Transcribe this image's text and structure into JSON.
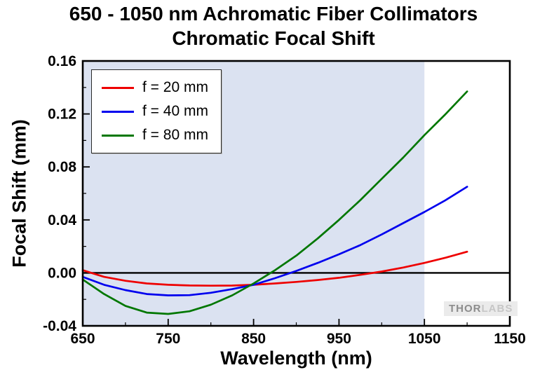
{
  "page": {
    "title_line1": "650 - 1050 nm Achromatic Fiber Collimators",
    "title_line2": "Chromatic Focal Shift"
  },
  "watermark": {
    "part1": "THOR",
    "part2": "LABS"
  },
  "chart_data": {
    "type": "line",
    "title": "650 - 1050 nm Achromatic Fiber Collimators Chromatic Focal Shift",
    "xlabel": "Wavelength (nm)",
    "ylabel": "Focal Shift (mm)",
    "xlim": [
      650,
      1150
    ],
    "ylim": [
      -0.04,
      0.16
    ],
    "x_major_ticks": [
      650,
      750,
      850,
      950,
      1050,
      1150
    ],
    "x_minor_ticks": [
      700,
      800,
      900,
      1000,
      1100
    ],
    "y_major_ticks": [
      -0.04,
      0.0,
      0.04,
      0.08,
      0.12,
      0.16
    ],
    "y_tick_labels": [
      "-0.04",
      "0.00",
      "0.04",
      "0.08",
      "0.12",
      "0.16"
    ],
    "y_minor_ticks": [
      -0.02,
      0.02,
      0.06,
      0.1,
      0.14
    ],
    "grid": "off",
    "legend_position": "top-left",
    "shaded_region": {
      "x_start": 650,
      "x_end": 1050,
      "color": "#dbe2f1"
    },
    "zero_line_y": 0,
    "x": [
      650,
      675,
      700,
      725,
      750,
      775,
      800,
      825,
      850,
      875,
      900,
      925,
      950,
      975,
      1000,
      1025,
      1050,
      1075,
      1100
    ],
    "series": [
      {
        "name": "f = 20 mm",
        "color": "#ee0000",
        "values": [
          0.002,
          -0.003,
          -0.006,
          -0.008,
          -0.009,
          -0.0095,
          -0.0097,
          -0.0096,
          -0.009,
          -0.008,
          -0.0068,
          -0.0054,
          -0.0037,
          -0.0015,
          0.001,
          0.004,
          0.0075,
          0.0115,
          0.016
        ]
      },
      {
        "name": "f = 40 mm",
        "color": "#0000ee",
        "values": [
          -0.003,
          -0.009,
          -0.013,
          -0.016,
          -0.017,
          -0.0168,
          -0.015,
          -0.0123,
          -0.009,
          -0.004,
          0.0015,
          0.0075,
          0.014,
          0.021,
          0.029,
          0.0375,
          0.046,
          0.055,
          0.065
        ]
      },
      {
        "name": "f = 80 mm",
        "color": "#007700",
        "values": [
          -0.005,
          -0.016,
          -0.025,
          -0.03,
          -0.031,
          -0.029,
          -0.024,
          -0.017,
          -0.008,
          0.002,
          0.013,
          0.026,
          0.04,
          0.055,
          0.071,
          0.087,
          0.104,
          0.12,
          0.137
        ]
      }
    ]
  }
}
